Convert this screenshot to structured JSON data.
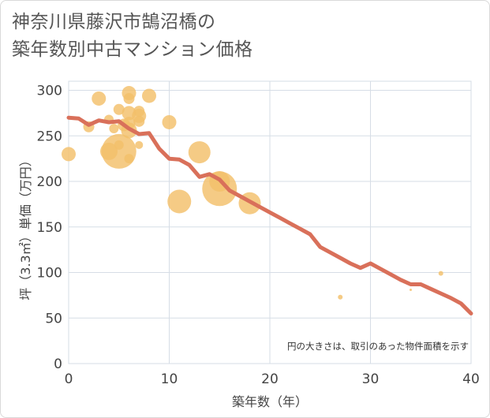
{
  "title_lines": [
    "神奈川県藤沢市鵠沼橋の",
    "築年数別中古マンション価格"
  ],
  "chart_data": {
    "type": "scatter",
    "title": "神奈川県藤沢市鵠沼橋の築年数別中古マンション価格",
    "xlabel": "築年数（年）",
    "ylabel": "坪（3.3㎡）単価（万円）",
    "xlim": [
      0,
      40
    ],
    "ylim": [
      0,
      310
    ],
    "x_ticks": [
      0,
      10,
      20,
      30,
      40
    ],
    "y_ticks": [
      0,
      50,
      100,
      150,
      200,
      250,
      300
    ],
    "grid": true,
    "annotation": "円の大きさは、取引のあった物件面積を示す",
    "colors": {
      "bubble": "#f3c06a",
      "trend": "#d9705a",
      "grid": "#d6dde6"
    },
    "bubbles": [
      {
        "x": 0,
        "y": 230,
        "size": 9
      },
      {
        "x": 2,
        "y": 260,
        "size": 7
      },
      {
        "x": 3,
        "y": 291,
        "size": 9
      },
      {
        "x": 4,
        "y": 268,
        "size": 6
      },
      {
        "x": 4,
        "y": 233,
        "size": 11
      },
      {
        "x": 4.5,
        "y": 258,
        "size": 6
      },
      {
        "x": 5,
        "y": 233,
        "size": 22
      },
      {
        "x": 5,
        "y": 240,
        "size": 6
      },
      {
        "x": 5,
        "y": 279,
        "size": 7
      },
      {
        "x": 5.5,
        "y": 262,
        "size": 8
      },
      {
        "x": 6,
        "y": 297,
        "size": 9
      },
      {
        "x": 6,
        "y": 291,
        "size": 7
      },
      {
        "x": 6,
        "y": 275,
        "size": 9
      },
      {
        "x": 6,
        "y": 264,
        "size": 8
      },
      {
        "x": 6,
        "y": 256,
        "size": 10
      },
      {
        "x": 6,
        "y": 225,
        "size": 6
      },
      {
        "x": 7,
        "y": 277,
        "size": 7
      },
      {
        "x": 7,
        "y": 272,
        "size": 9
      },
      {
        "x": 7,
        "y": 266,
        "size": 7
      },
      {
        "x": 7,
        "y": 240,
        "size": 5
      },
      {
        "x": 8,
        "y": 294,
        "size": 9
      },
      {
        "x": 10,
        "y": 265,
        "size": 9
      },
      {
        "x": 11,
        "y": 178,
        "size": 15
      },
      {
        "x": 13,
        "y": 232,
        "size": 14
      },
      {
        "x": 15,
        "y": 192,
        "size": 22
      },
      {
        "x": 15,
        "y": 200,
        "size": 13
      },
      {
        "x": 18,
        "y": 176,
        "size": 14
      },
      {
        "x": 27,
        "y": 73,
        "size": 3
      },
      {
        "x": 34,
        "y": 81,
        "size": 1.5
      },
      {
        "x": 37,
        "y": 99,
        "size": 3
      }
    ],
    "trend_line": {
      "x": [
        0,
        1,
        2,
        3,
        4,
        5,
        6,
        7,
        8,
        9,
        10,
        11,
        12,
        13,
        14,
        15,
        16,
        17,
        18,
        19,
        20,
        21,
        22,
        23,
        24,
        25,
        26,
        27,
        28,
        29,
        30,
        31,
        32,
        33,
        34,
        35,
        36,
        37,
        38,
        39,
        40
      ],
      "y": [
        270,
        269,
        262,
        267,
        265,
        266,
        258,
        252,
        253,
        236,
        225,
        224,
        218,
        205,
        208,
        202,
        190,
        184,
        178,
        172,
        166,
        160,
        154,
        148,
        142,
        128,
        122,
        116,
        110,
        105,
        110,
        104,
        98,
        92,
        87,
        87,
        82,
        77,
        72,
        66,
        55
      ]
    }
  }
}
